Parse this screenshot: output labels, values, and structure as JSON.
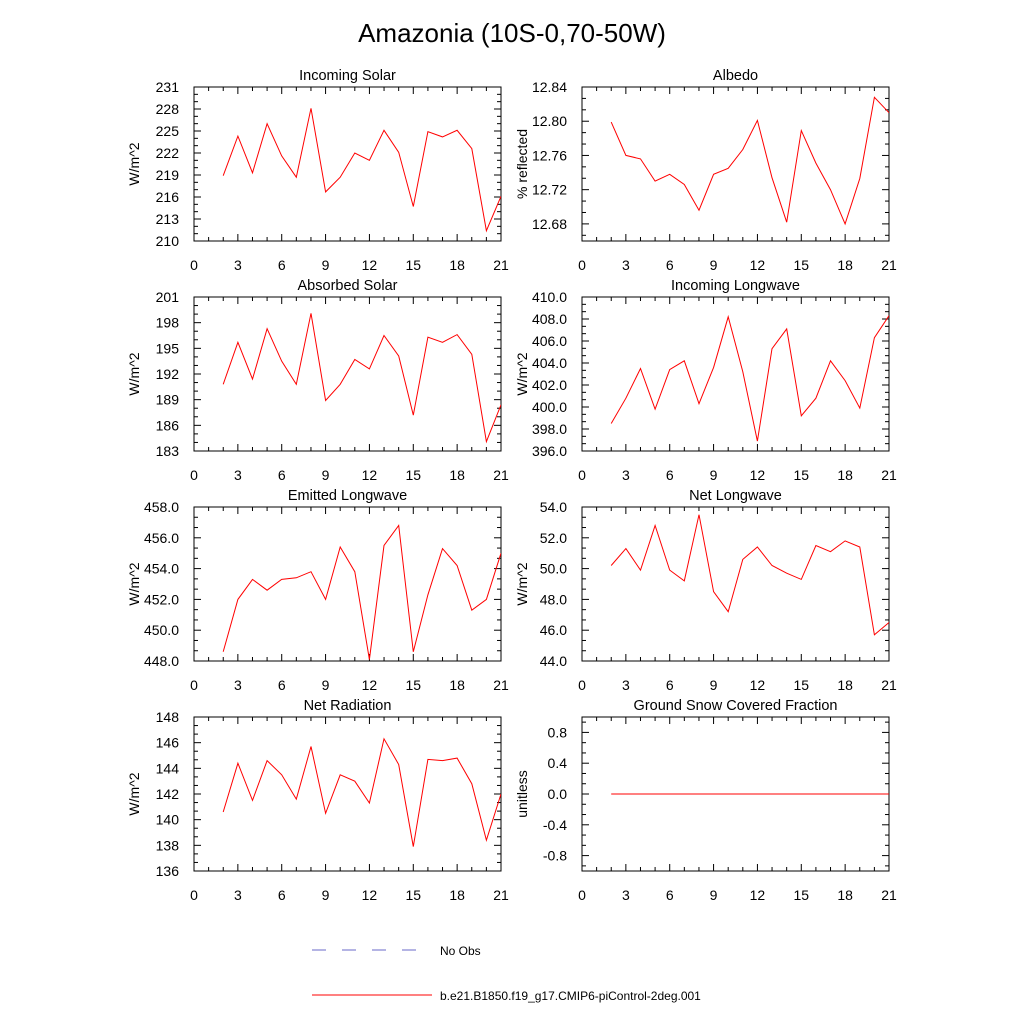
{
  "title": "Amazonia (10S-0,70-50W)",
  "colors": {
    "model": "#ff0000",
    "obs": "#6a6ac8",
    "axis": "#000000"
  },
  "legend": [
    {
      "label": "No Obs",
      "style": "dashed",
      "color": "#6a6ac8"
    },
    {
      "label": "b.e21.B1850.f19_g17.CMIP6-piControl-2deg.001",
      "style": "solid",
      "color": "#ff0000"
    }
  ],
  "chart_data": [
    {
      "type": "line",
      "title": "Incoming Solar",
      "ylabel": "W/m^2",
      "xlim": [
        0,
        21
      ],
      "ylim": [
        210,
        231
      ],
      "xticks": [
        0,
        3,
        6,
        9,
        12,
        15,
        18,
        21
      ],
      "yticks": [
        "210",
        "213",
        "216",
        "219",
        "222",
        "225",
        "228",
        "231"
      ],
      "x": [
        2,
        3,
        4,
        5,
        6,
        7,
        8,
        9,
        10,
        11,
        12,
        13,
        14,
        15,
        16,
        17,
        18,
        19,
        20,
        21
      ],
      "series": [
        {
          "name": "b.e21.B1850.f19_g17.CMIP6-piControl-2deg.001",
          "values": [
            218.9,
            224.3,
            219.3,
            226.0,
            221.6,
            218.7,
            228.1,
            216.7,
            218.7,
            222.0,
            221.0,
            225.1,
            222.1,
            214.7,
            224.9,
            224.2,
            225.1,
            222.6,
            211.4,
            216.1
          ]
        }
      ]
    },
    {
      "type": "line",
      "title": "Albedo",
      "ylabel": "% reflected",
      "xlim": [
        0,
        21
      ],
      "ylim": [
        12.66,
        12.84
      ],
      "xticks": [
        0,
        3,
        6,
        9,
        12,
        15,
        18,
        21
      ],
      "yticks": [
        "12.68",
        "12.72",
        "12.76",
        "12.80",
        "12.84"
      ],
      "x": [
        2,
        3,
        4,
        5,
        6,
        7,
        8,
        9,
        10,
        11,
        12,
        13,
        14,
        15,
        16,
        17,
        18,
        19,
        20,
        21
      ],
      "series": [
        {
          "name": "b.e21.B1850.f19_g17.CMIP6-piControl-2deg.001",
          "values": [
            12.799,
            12.76,
            12.756,
            12.73,
            12.738,
            12.726,
            12.696,
            12.738,
            12.745,
            12.767,
            12.801,
            12.734,
            12.682,
            12.789,
            12.751,
            12.72,
            12.68,
            12.733,
            12.828,
            12.81
          ]
        }
      ]
    },
    {
      "type": "line",
      "title": "Absorbed Solar",
      "ylabel": "W/m^2",
      "xlim": [
        0,
        21
      ],
      "ylim": [
        183,
        201
      ],
      "xticks": [
        0,
        3,
        6,
        9,
        12,
        15,
        18,
        21
      ],
      "yticks": [
        "183",
        "186",
        "189",
        "192",
        "195",
        "198",
        "201"
      ],
      "x": [
        2,
        3,
        4,
        5,
        6,
        7,
        8,
        9,
        10,
        11,
        12,
        13,
        14,
        15,
        16,
        17,
        18,
        19,
        20,
        21
      ],
      "series": [
        {
          "name": "b.e21.B1850.f19_g17.CMIP6-piControl-2deg.001",
          "values": [
            190.8,
            195.7,
            191.4,
            197.3,
            193.5,
            190.8,
            199.1,
            188.9,
            190.8,
            193.7,
            192.6,
            196.5,
            194.1,
            187.2,
            196.3,
            195.7,
            196.6,
            194.3,
            184.1,
            188.4
          ]
        }
      ]
    },
    {
      "type": "line",
      "title": "Incoming Longwave",
      "ylabel": "W/m^2",
      "xlim": [
        0,
        21
      ],
      "ylim": [
        396,
        410
      ],
      "xticks": [
        0,
        3,
        6,
        9,
        12,
        15,
        18,
        21
      ],
      "yticks": [
        "396.0",
        "398.0",
        "400.0",
        "402.0",
        "404.0",
        "406.0",
        "408.0",
        "410.0"
      ],
      "x": [
        2,
        3,
        4,
        5,
        6,
        7,
        8,
        9,
        10,
        11,
        12,
        13,
        14,
        15,
        16,
        17,
        18,
        19,
        20,
        21
      ],
      "series": [
        {
          "name": "b.e21.B1850.f19_g17.CMIP6-piControl-2deg.001",
          "values": [
            398.5,
            400.8,
            403.5,
            399.8,
            403.4,
            404.2,
            400.3,
            403.6,
            408.2,
            403.2,
            396.9,
            405.3,
            407.1,
            399.2,
            400.8,
            404.2,
            402.4,
            399.9,
            406.3,
            408.3
          ]
        }
      ]
    },
    {
      "type": "line",
      "title": "Emitted Longwave",
      "ylabel": "W/m^2",
      "xlim": [
        0,
        21
      ],
      "ylim": [
        448,
        458
      ],
      "xticks": [
        0,
        3,
        6,
        9,
        12,
        15,
        18,
        21
      ],
      "yticks": [
        "448.0",
        "450.0",
        "452.0",
        "454.0",
        "456.0",
        "458.0"
      ],
      "x": [
        2,
        3,
        4,
        5,
        6,
        7,
        8,
        9,
        10,
        11,
        12,
        13,
        14,
        15,
        16,
        17,
        18,
        19,
        20,
        21
      ],
      "series": [
        {
          "name": "b.e21.B1850.f19_g17.CMIP6-piControl-2deg.001",
          "values": [
            448.6,
            452.0,
            453.3,
            452.6,
            453.3,
            453.4,
            453.8,
            452.0,
            455.4,
            453.8,
            448.1,
            455.5,
            456.8,
            448.6,
            452.3,
            455.3,
            454.2,
            451.3,
            452.0,
            455.0
          ]
        }
      ]
    },
    {
      "type": "line",
      "title": "Net Longwave",
      "ylabel": "W/m^2",
      "xlim": [
        0,
        21
      ],
      "ylim": [
        44,
        54
      ],
      "xticks": [
        0,
        3,
        6,
        9,
        12,
        15,
        18,
        21
      ],
      "yticks": [
        "44.0",
        "46.0",
        "48.0",
        "50.0",
        "52.0",
        "54.0"
      ],
      "x": [
        2,
        3,
        4,
        5,
        6,
        7,
        8,
        9,
        10,
        11,
        12,
        13,
        14,
        15,
        16,
        17,
        18,
        19,
        20,
        21
      ],
      "series": [
        {
          "name": "b.e21.B1850.f19_g17.CMIP6-piControl-2deg.001",
          "values": [
            50.2,
            51.3,
            49.9,
            52.8,
            49.9,
            49.2,
            53.5,
            48.5,
            47.2,
            50.6,
            51.4,
            50.2,
            49.7,
            49.3,
            51.5,
            51.1,
            51.8,
            51.4,
            45.7,
            46.5
          ]
        }
      ]
    },
    {
      "type": "line",
      "title": "Net Radiation",
      "ylabel": "W/m^2",
      "xlim": [
        0,
        21
      ],
      "ylim": [
        136,
        148
      ],
      "xticks": [
        0,
        3,
        6,
        9,
        12,
        15,
        18,
        21
      ],
      "yticks": [
        "136",
        "138",
        "140",
        "142",
        "144",
        "146",
        "148"
      ],
      "x": [
        2,
        3,
        4,
        5,
        6,
        7,
        8,
        9,
        10,
        11,
        12,
        13,
        14,
        15,
        16,
        17,
        18,
        19,
        20,
        21
      ],
      "series": [
        {
          "name": "b.e21.B1850.f19_g17.CMIP6-piControl-2deg.001",
          "values": [
            140.6,
            144.4,
            141.5,
            144.6,
            143.5,
            141.6,
            145.7,
            140.5,
            143.5,
            143.0,
            141.3,
            146.3,
            144.3,
            137.9,
            144.7,
            144.6,
            144.8,
            142.8,
            138.4,
            142.0
          ]
        }
      ]
    },
    {
      "type": "line",
      "title": "Ground Snow Covered Fraction",
      "ylabel": "unitless",
      "xlim": [
        0,
        21
      ],
      "ylim": [
        -1.0,
        1.0
      ],
      "xticks": [
        0,
        3,
        6,
        9,
        12,
        15,
        18,
        21
      ],
      "yticks": [
        "-0.8",
        "-0.4",
        "0.0",
        "0.4",
        "0.8"
      ],
      "x": [
        2,
        3,
        4,
        5,
        6,
        7,
        8,
        9,
        10,
        11,
        12,
        13,
        14,
        15,
        16,
        17,
        18,
        19,
        20,
        21
      ],
      "series": [
        {
          "name": "b.e21.B1850.f19_g17.CMIP6-piControl-2deg.001",
          "values": [
            0,
            0,
            0,
            0,
            0,
            0,
            0,
            0,
            0,
            0,
            0,
            0,
            0,
            0,
            0,
            0,
            0,
            0,
            0,
            0
          ]
        }
      ]
    }
  ]
}
